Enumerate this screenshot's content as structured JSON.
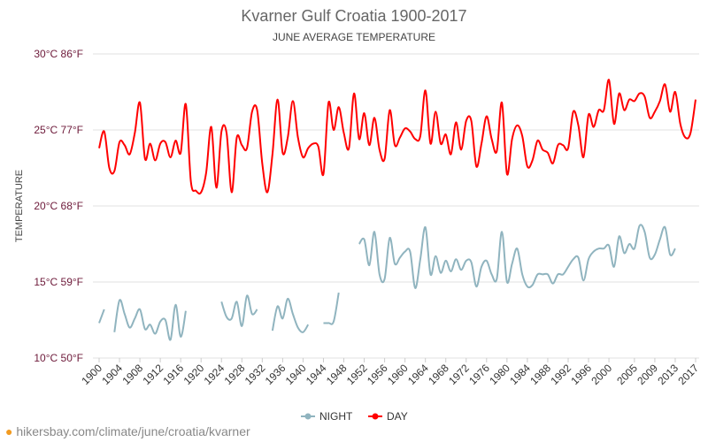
{
  "chart_data": {
    "type": "line",
    "title": "Kvarner Gulf Croatia 1900-2017",
    "subtitle": "JUNE AVERAGE TEMPERATURE",
    "ylabel": "TEMPERATURE",
    "xlabel": "",
    "ylim": [
      10,
      30
    ],
    "xlim": [
      1900,
      2017
    ],
    "grid": true,
    "legend_position": "bottom",
    "y_ticks": [
      {
        "value": 10,
        "label": "10°C 50°F"
      },
      {
        "value": 15,
        "label": "15°C 59°F"
      },
      {
        "value": 20,
        "label": "20°C 68°F"
      },
      {
        "value": 25,
        "label": "25°C 77°F"
      },
      {
        "value": 30,
        "label": "30°C 86°F"
      }
    ],
    "x_ticks": [
      1900,
      1904,
      1908,
      1912,
      1916,
      1920,
      1924,
      1928,
      1932,
      1936,
      1940,
      1944,
      1948,
      1952,
      1956,
      1960,
      1964,
      1968,
      1972,
      1976,
      1980,
      1984,
      1988,
      1992,
      1996,
      2000,
      2005,
      2009,
      2013,
      2017
    ],
    "x_start": 1900,
    "series": [
      {
        "name": "NIGHT",
        "color": "#90b4bf",
        "values": [
          12.3,
          13.2,
          null,
          11.7,
          13.8,
          12.9,
          12.0,
          12.6,
          13.2,
          11.9,
          12.2,
          11.6,
          12.4,
          12.5,
          11.2,
          13.5,
          11.4,
          13.1,
          null,
          null,
          null,
          null,
          null,
          null,
          13.7,
          12.7,
          12.6,
          13.7,
          12.1,
          14.1,
          12.9,
          13.2,
          null,
          null,
          11.8,
          13.4,
          12.6,
          13.9,
          12.9,
          12.0,
          11.7,
          12.2,
          null,
          null,
          12.3,
          12.3,
          12.4,
          14.3,
          null,
          null,
          null,
          17.5,
          17.8,
          16.1,
          18.3,
          15.5,
          15.2,
          17.9,
          16.2,
          16.6,
          17.0,
          17.0,
          14.6,
          16.5,
          18.6,
          15.5,
          16.7,
          15.6,
          16.4,
          15.7,
          16.5,
          15.8,
          16.4,
          16.3,
          14.7,
          16.0,
          16.4,
          15.5,
          15.2,
          18.3,
          15.0,
          16.2,
          17.2,
          15.5,
          14.7,
          14.8,
          15.5,
          15.5,
          15.5,
          14.9,
          15.5,
          15.5,
          16.0,
          16.5,
          16.6,
          15.1,
          16.5,
          17.0,
          17.2,
          17.2,
          17.4,
          16.0,
          18.0,
          16.9,
          17.5,
          17.2,
          18.7,
          18.3,
          16.6,
          16.8,
          17.8,
          18.6,
          16.8,
          17.2,
          null,
          null,
          null,
          null
        ]
      },
      {
        "name": "DAY",
        "color": "#ff0000",
        "values": [
          23.8,
          24.9,
          22.5,
          22.3,
          24.2,
          24.0,
          23.4,
          24.8,
          26.8,
          23.1,
          24.1,
          23.0,
          24.1,
          24.2,
          23.2,
          24.3,
          23.5,
          26.7,
          21.6,
          21.0,
          20.9,
          22.2,
          25.2,
          21.2,
          24.9,
          24.8,
          20.9,
          24.5,
          24.0,
          23.8,
          26.2,
          26.3,
          22.8,
          20.9,
          23.4,
          27.0,
          23.5,
          24.5,
          26.9,
          24.5,
          23.2,
          23.8,
          24.1,
          23.9,
          22.1,
          26.8,
          25.0,
          26.5,
          24.8,
          23.8,
          27.4,
          24.4,
          26.1,
          24.0,
          25.8,
          23.7,
          23.1,
          26.3,
          24.0,
          24.5,
          25.1,
          24.9,
          24.4,
          24.6,
          27.6,
          24.1,
          26.2,
          24.1,
          24.7,
          23.4,
          25.5,
          23.7,
          25.6,
          25.6,
          22.6,
          24.1,
          25.9,
          24.4,
          23.6,
          26.8,
          22.1,
          24.4,
          25.3,
          24.6,
          22.6,
          23.0,
          24.3,
          23.7,
          23.5,
          22.8,
          24.0,
          24.0,
          23.8,
          26.2,
          25.3,
          23.2,
          26.0,
          25.2,
          26.3,
          26.3,
          28.3,
          25.4,
          27.4,
          26.3,
          27.0,
          26.9,
          27.4,
          27.2,
          25.8,
          26.2,
          26.9,
          28.0,
          26.2,
          27.5,
          25.4,
          24.5,
          24.8,
          27.0
        ]
      }
    ]
  },
  "footer": {
    "url": "hikersbay.com/climate/june/croatia/kvarner"
  }
}
